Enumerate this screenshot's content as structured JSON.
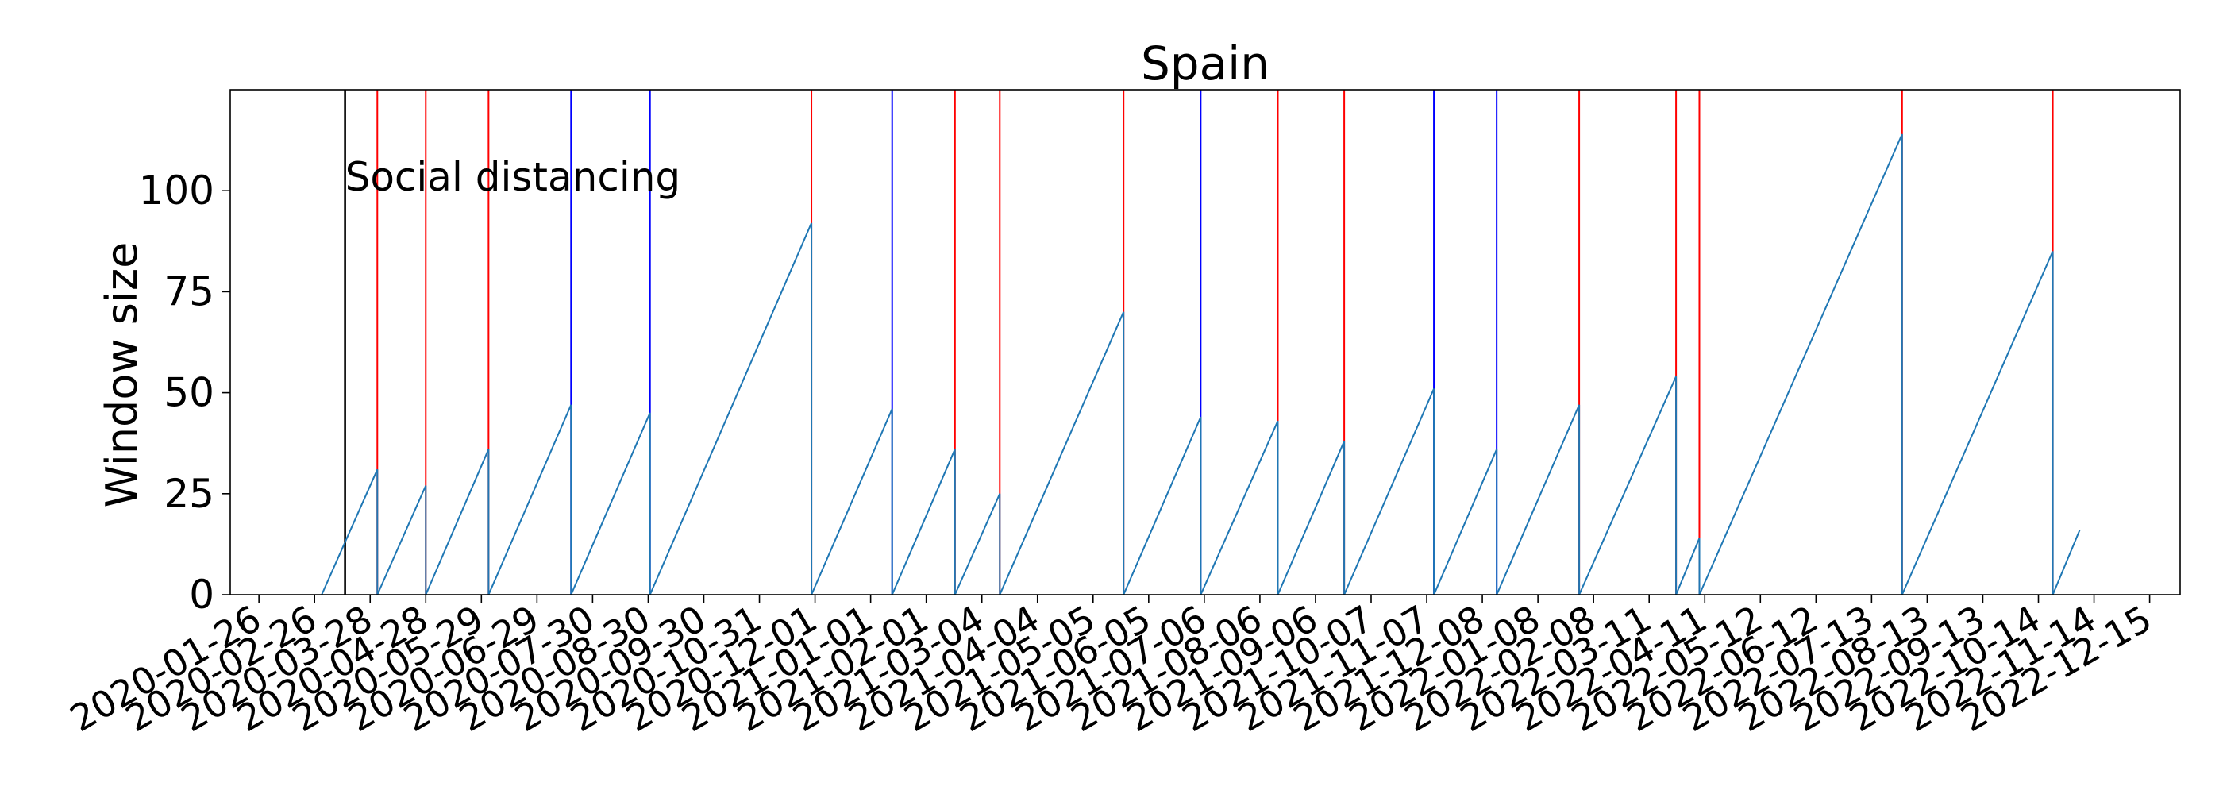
{
  "chart_data": {
    "type": "line",
    "title": "Spain",
    "xlabel": "",
    "ylabel": "Window size",
    "ylim": [
      0,
      125
    ],
    "yticks": [
      0,
      25,
      50,
      75,
      100
    ],
    "xlim": [
      "2020-01-10",
      "2023-01-01"
    ],
    "xticks": [
      "2020-01-26",
      "2020-02-26",
      "2020-03-28",
      "2020-04-28",
      "2020-05-29",
      "2020-06-29",
      "2020-07-30",
      "2020-08-30",
      "2020-09-30",
      "2020-10-31",
      "2020-12-01",
      "2021-01-01",
      "2021-02-01",
      "2021-03-04",
      "2021-04-04",
      "2021-05-05",
      "2021-06-05",
      "2021-07-06",
      "2021-08-06",
      "2021-09-06",
      "2021-10-07",
      "2021-11-07",
      "2021-12-08",
      "2022-01-08",
      "2022-02-08",
      "2022-03-11",
      "2022-04-11",
      "2022-05-12",
      "2022-06-12",
      "2022-07-13",
      "2022-08-13",
      "2022-09-13",
      "2022-10-14",
      "2022-11-14",
      "2022-12-15"
    ],
    "grid": false,
    "colors": {
      "series": "#1f77b4",
      "red_changepoint": "#ff0000",
      "blue_changepoint": "#0000ff",
      "annotation_line": "#000000"
    },
    "series": [
      {
        "x": [
          "2020-03-01",
          "2020-04-01",
          "2020-04-01",
          "2020-04-28",
          "2020-04-28",
          "2020-06-02",
          "2020-06-02",
          "2020-07-18",
          "2020-07-18",
          "2020-08-31",
          "2020-08-31",
          "2020-11-29",
          "2020-11-29",
          "2021-01-13",
          "2021-01-13",
          "2021-02-17",
          "2021-02-17",
          "2021-03-14",
          "2021-03-14",
          "2021-05-22",
          "2021-05-22",
          "2021-07-04",
          "2021-07-04",
          "2021-08-16",
          "2021-08-16",
          "2021-09-22",
          "2021-09-22",
          "2021-11-11",
          "2021-11-11",
          "2021-12-16",
          "2021-12-16",
          "2022-01-31",
          "2022-01-31",
          "2022-03-26",
          "2022-03-26",
          "2022-04-08",
          "2022-04-08",
          "2022-07-30",
          "2022-07-30",
          "2022-10-22",
          "2022-10-22",
          "2022-11-06"
        ],
        "y": [
          0,
          31,
          0,
          27,
          0,
          36,
          0,
          47,
          0,
          45,
          0,
          92,
          0,
          46,
          0,
          36,
          0,
          25,
          0,
          70,
          0,
          44,
          0,
          43,
          0,
          38,
          0,
          51,
          0,
          36,
          0,
          47,
          0,
          54,
          0,
          14,
          0,
          114,
          0,
          85,
          0,
          16
        ]
      }
    ],
    "vertical_lines": [
      {
        "date": "2020-03-14",
        "color": "black"
      },
      {
        "date": "2020-04-01",
        "color": "red"
      },
      {
        "date": "2020-04-28",
        "color": "red"
      },
      {
        "date": "2020-06-02",
        "color": "red"
      },
      {
        "date": "2020-07-18",
        "color": "blue"
      },
      {
        "date": "2020-08-31",
        "color": "blue"
      },
      {
        "date": "2020-11-29",
        "color": "red"
      },
      {
        "date": "2021-01-13",
        "color": "blue"
      },
      {
        "date": "2021-02-17",
        "color": "red"
      },
      {
        "date": "2021-03-14",
        "color": "red"
      },
      {
        "date": "2021-05-22",
        "color": "red"
      },
      {
        "date": "2021-07-04",
        "color": "blue"
      },
      {
        "date": "2021-08-16",
        "color": "red"
      },
      {
        "date": "2021-09-22",
        "color": "red"
      },
      {
        "date": "2021-11-11",
        "color": "blue"
      },
      {
        "date": "2021-12-16",
        "color": "blue"
      },
      {
        "date": "2022-01-31",
        "color": "red"
      },
      {
        "date": "2022-03-26",
        "color": "red"
      },
      {
        "date": "2022-04-08",
        "color": "red"
      },
      {
        "date": "2022-07-30",
        "color": "red"
      },
      {
        "date": "2022-10-22",
        "color": "red"
      }
    ],
    "annotations": [
      {
        "text": "Social distancing",
        "date": "2020-03-14",
        "y": 100
      }
    ]
  }
}
